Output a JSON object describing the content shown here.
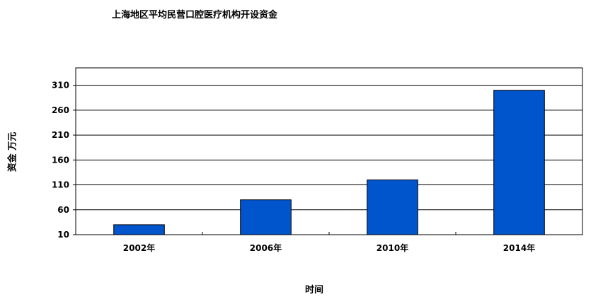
{
  "chart_data": {
    "type": "bar",
    "title": "上海地区平均民营口腔医疗机构开设资金",
    "xlabel": "时间",
    "ylabel": "资金 万元",
    "categories": [
      "2002年",
      "2006年",
      "2010年",
      "2014年"
    ],
    "values": [
      30,
      80,
      120,
      300
    ],
    "ylim": [
      10,
      345
    ],
    "yticks": [
      10,
      60,
      110,
      160,
      210,
      260,
      310
    ],
    "grid": true,
    "bar_color": "#0055cc"
  }
}
